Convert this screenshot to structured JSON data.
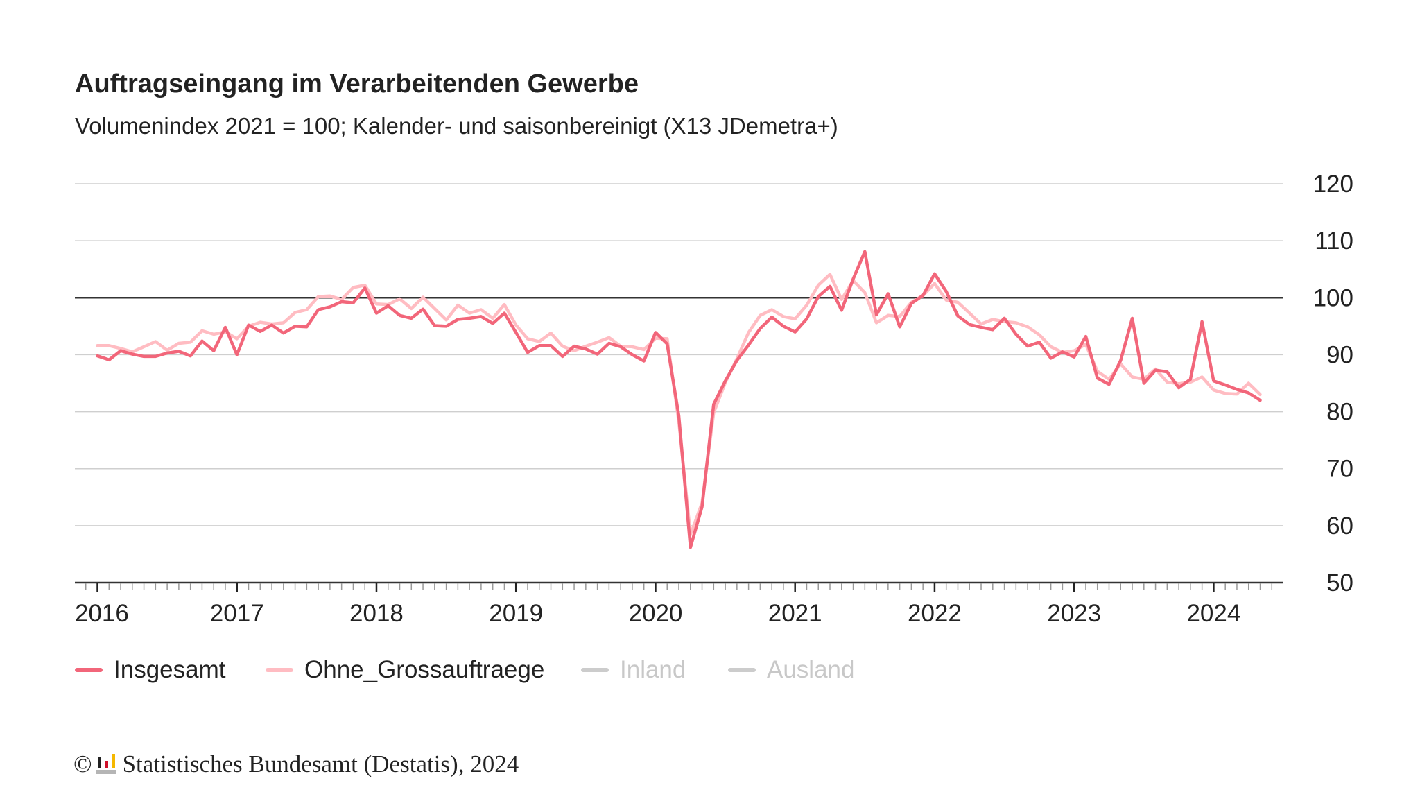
{
  "chart_data": {
    "type": "line",
    "title": "Auftragseingang im Verarbeitenden Gewerbe",
    "subtitle": "Volumenindex 2021 = 100; Kalender- und saisonbereinigt (X13 JDemetra+)",
    "x_start": "2016-01",
    "x_frequency": "monthly",
    "x_tick_labels": [
      "2016",
      "2017",
      "2018",
      "2019",
      "2020",
      "2021",
      "2022",
      "2023",
      "2024"
    ],
    "y_ticks": [
      50,
      60,
      70,
      80,
      90,
      100,
      110,
      120
    ],
    "ylim": [
      50,
      120
    ],
    "reference_line": 100,
    "grid": true,
    "legend_placement": "bottom-left",
    "series": [
      {
        "name": "Insgesamt",
        "color": "#f2667a",
        "active": true,
        "values": [
          89.8,
          89.1,
          90.7,
          90.1,
          89.7,
          89.7,
          90.3,
          90.6,
          89.8,
          92.4,
          90.7,
          94.8,
          90.0,
          95.2,
          94.1,
          95.2,
          93.8,
          95.0,
          94.9,
          97.9,
          98.4,
          99.3,
          99.1,
          101.7,
          97.3,
          98.6,
          96.9,
          96.4,
          98.0,
          95.1,
          95.0,
          96.2,
          96.4,
          96.7,
          95.5,
          97.3,
          93.9,
          90.4,
          91.6,
          91.6,
          89.7,
          91.5,
          91.0,
          90.1,
          92.0,
          91.4,
          90.0,
          88.9,
          93.9,
          91.9,
          79.3,
          56.2,
          63.3,
          81.3,
          85.4,
          89.0,
          91.7,
          94.6,
          96.6,
          95.0,
          94.0,
          96.3,
          100.2,
          102.0,
          97.8,
          103.3,
          108.1,
          97.0,
          100.7,
          94.9,
          99.0,
          100.4,
          104.2,
          101.1,
          96.8,
          95.3,
          94.8,
          94.4,
          96.4,
          93.6,
          91.5,
          92.2,
          89.4,
          90.5,
          89.6,
          93.2,
          85.9,
          84.8,
          89.0,
          96.4,
          85.0,
          87.3,
          87.0,
          84.2,
          85.7,
          95.8,
          85.4,
          84.7,
          83.9,
          83.3,
          82.0
        ]
      },
      {
        "name": "Ohne_Grossauftraege",
        "color": "#ffbcc2",
        "active": true,
        "values": [
          91.6,
          91.6,
          91.1,
          90.5,
          91.4,
          92.3,
          90.8,
          92.0,
          92.2,
          94.2,
          93.6,
          94.0,
          92.8,
          95.0,
          95.7,
          95.4,
          95.6,
          97.4,
          97.9,
          100.2,
          100.3,
          99.7,
          101.8,
          102.2,
          98.9,
          98.8,
          99.8,
          98.1,
          100.1,
          98.1,
          96.1,
          98.7,
          97.3,
          97.9,
          96.4,
          98.8,
          95.2,
          92.8,
          92.3,
          93.8,
          91.5,
          90.7,
          91.5,
          92.2,
          93.0,
          91.5,
          91.4,
          90.9,
          92.9,
          92.8,
          78.3,
          58.4,
          64.0,
          79.8,
          85.1,
          89.3,
          93.9,
          96.9,
          97.9,
          96.7,
          96.3,
          98.7,
          102.2,
          104.1,
          99.7,
          103.0,
          100.9,
          95.6,
          96.9,
          96.7,
          99.2,
          100.4,
          102.5,
          99.6,
          99.2,
          97.3,
          95.4,
          96.2,
          95.8,
          95.6,
          94.9,
          93.5,
          91.4,
          90.4,
          90.7,
          91.8,
          87.1,
          85.7,
          88.4,
          86.1,
          85.7,
          87.5,
          85.2,
          84.9,
          85.2,
          86.1,
          83.8,
          83.2,
          83.1,
          85.0,
          83.0
        ]
      },
      {
        "name": "Inland",
        "color": "#cccccc",
        "active": false,
        "values": []
      },
      {
        "name": "Ausland",
        "color": "#cccccc",
        "active": false,
        "values": []
      }
    ]
  },
  "footer": {
    "copyright": "©",
    "text": "Statistisches Bundesamt (Destatis), 2024"
  }
}
